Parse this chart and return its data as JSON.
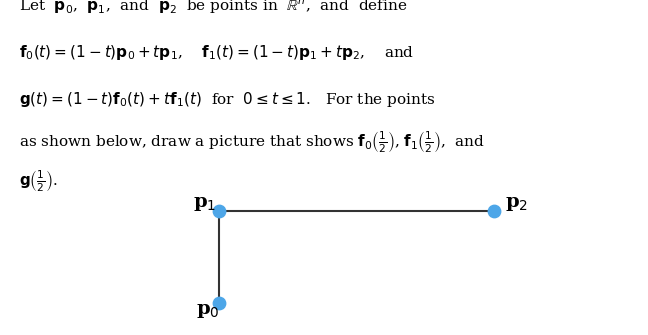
{
  "P0": [
    0.0,
    0.0
  ],
  "P1": [
    0.0,
    1.0
  ],
  "P2": [
    3.0,
    1.0
  ],
  "point_color": "#4da6e8",
  "line_color": "#333333",
  "point_size": 80,
  "line_width": 1.5,
  "label_P0": "p$_0$",
  "label_P1": "p$_1$",
  "label_P2": "p$_2$",
  "label_fontsize": 14,
  "label_fontweight": "bold",
  "text_block": [
    "Let  $\\mathbf{p}_0$,  $\\mathbf{p}_1$,  and  $\\mathbf{p}_2$  be points in  $\\mathbb{R}^n$,  and  define",
    "$\\mathbf{f}_0(t) = (1-t)\\mathbf{p}_0 + t\\mathbf{p}_1$,    $\\mathbf{f}_1(t) = (1-t)\\mathbf{p}_1 + t\\mathbf{p}_2$,    and",
    "$\\mathbf{g}(t) = (1-t)\\mathbf{f}_0(t) + t\\mathbf{f}_1(t)$  for  $0 \\leq t \\leq 1$.   For the points",
    "as shown below, draw a picture that shows $\\mathbf{f}_0\\left(\\frac{1}{2}\\right)$, $\\mathbf{f}_1\\left(\\frac{1}{2}\\right)$,  and",
    "$\\mathbf{g}\\left(\\frac{1}{2}\\right)$."
  ],
  "bg_color": "#ffffff",
  "figsize": [
    6.48,
    3.35
  ],
  "dpi": 100
}
